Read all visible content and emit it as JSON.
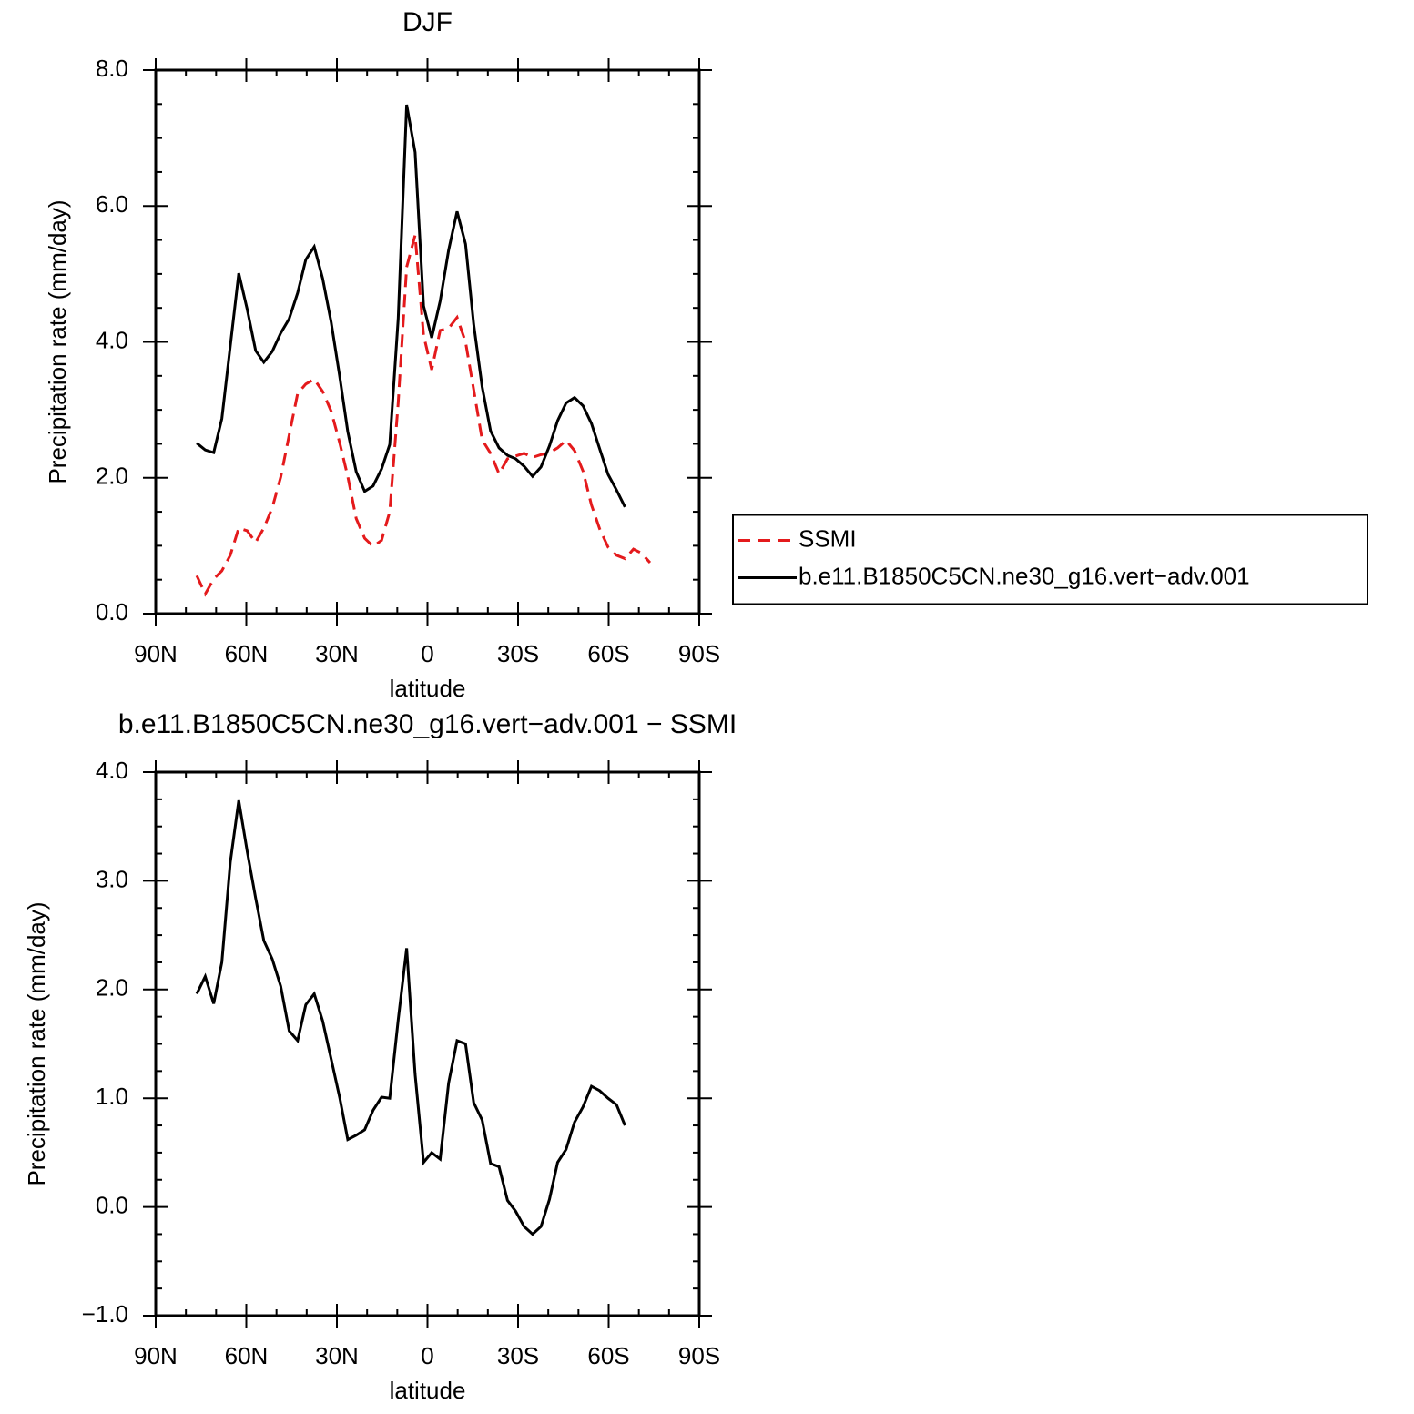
{
  "chart_data": [
    {
      "type": "line",
      "title": "DJF",
      "xlabel": "latitude",
      "ylabel": "Precipitation rate (mm/day)",
      "x": [
        76.4,
        73.6,
        70.8,
        68.1,
        65.3,
        62.5,
        59.7,
        56.9,
        54.2,
        51.4,
        48.6,
        45.8,
        43.0,
        40.3,
        37.5,
        34.7,
        31.9,
        29.1,
        26.4,
        23.6,
        20.8,
        18.0,
        15.2,
        12.5,
        9.7,
        6.9,
        4.1,
        1.3,
        -1.4,
        -4.2,
        -7.0,
        -9.8,
        -12.6,
        -15.3,
        -18.1,
        -20.9,
        -23.7,
        -26.5,
        -29.2,
        -32.0,
        -34.8,
        -37.6,
        -40.4,
        -43.1,
        -45.9,
        -48.7,
        -51.5,
        -54.3,
        -57.0,
        -59.8,
        -62.6,
        -65.4,
        -68.2,
        -70.9,
        -73.7
      ],
      "series": [
        {
          "name": "SSMI",
          "color": "#e41a1c",
          "dashed": true,
          "values": [
            0.56,
            0.29,
            0.51,
            0.63,
            0.86,
            1.26,
            1.22,
            1.05,
            1.26,
            1.56,
            2.01,
            2.63,
            3.24,
            3.38,
            3.45,
            3.27,
            2.98,
            2.52,
            2.02,
            1.4,
            1.11,
            0.99,
            1.08,
            1.5,
            3.1,
            5.1,
            5.57,
            4.1,
            3.59,
            4.17,
            4.2,
            4.36,
            4.0,
            3.3,
            2.56,
            2.36,
            2.06,
            2.28,
            2.32,
            2.36,
            2.3,
            2.34,
            2.37,
            2.44,
            2.55,
            2.4,
            2.1,
            1.6,
            1.25,
            0.98,
            0.86,
            0.81,
            0.95,
            0.89,
            0.75
          ]
        },
        {
          "name": "b.e11.B1850C5CN.ne30_g16.vert−adv.001",
          "color": "#000000",
          "dashed": false,
          "values": [
            2.51,
            2.41,
            2.37,
            2.87,
            3.94,
            5.01,
            4.48,
            3.87,
            3.7,
            3.86,
            4.13,
            4.34,
            4.72,
            5.21,
            5.4,
            4.93,
            4.29,
            3.5,
            2.68,
            2.09,
            1.8,
            1.88,
            2.13,
            2.49,
            4.34,
            7.49,
            6.79,
            4.53,
            4.06,
            4.6,
            5.35,
            5.92,
            5.44,
            4.26,
            3.34,
            2.69,
            2.44,
            2.33,
            2.28,
            2.17,
            2.02,
            2.16,
            2.47,
            2.84,
            3.1,
            3.18,
            3.06,
            2.8,
            2.43,
            2.05,
            1.82,
            1.57,
            null,
            null,
            null
          ]
        }
      ],
      "xlim": [
        90,
        -90
      ],
      "xticks": [
        {
          "value": 90,
          "label": "90N"
        },
        {
          "value": 60,
          "label": "60N"
        },
        {
          "value": 30,
          "label": "30N"
        },
        0,
        {
          "value": -30,
          "label": "30S"
        },
        {
          "value": -60,
          "label": "60S"
        },
        {
          "value": -90,
          "label": "90S"
        }
      ],
      "xminorticks": [
        80,
        70,
        50,
        40,
        20,
        10,
        -10,
        -20,
        -40,
        -50,
        -70,
        -80
      ],
      "ylim": [
        0,
        8
      ],
      "yticks": [
        {
          "value": 0,
          "label": "0.0"
        },
        {
          "value": 2,
          "label": "2.0"
        },
        {
          "value": 4,
          "label": "4.0"
        },
        {
          "value": 6,
          "label": "6.0"
        },
        {
          "value": 8,
          "label": "8.0"
        }
      ],
      "yminorticks": [
        0.5,
        1,
        1.5,
        2.5,
        3,
        3.5,
        4.5,
        5,
        5.5,
        6.5,
        7,
        7.5
      ],
      "legend": "right"
    },
    {
      "type": "line",
      "title": "b.e11.B1850C5CN.ne30_g16.vert−adv.001 − SSMI",
      "xlabel": "latitude",
      "ylabel": "Precipitation rate (mm/day)",
      "x": [
        76.4,
        73.6,
        70.8,
        68.1,
        65.3,
        62.5,
        59.7,
        56.9,
        54.2,
        51.4,
        48.6,
        45.8,
        43.0,
        40.3,
        37.5,
        34.7,
        31.9,
        29.1,
        26.4,
        23.6,
        20.8,
        18.0,
        15.2,
        12.5,
        9.7,
        6.9,
        4.1,
        1.3,
        -1.4,
        -4.2,
        -7.0,
        -9.8,
        -12.6,
        -15.3,
        -18.1,
        -20.9,
        -23.7,
        -26.5,
        -29.2,
        -32.0,
        -34.8,
        -37.6,
        -40.4,
        -43.1,
        -45.9,
        -48.7,
        -51.5,
        -54.3,
        -57.0,
        -59.8,
        -62.6,
        -65.4
      ],
      "color": "#000000",
      "values": [
        1.96,
        2.12,
        1.87,
        2.25,
        3.17,
        3.74,
        3.27,
        2.84,
        2.45,
        2.28,
        2.03,
        1.62,
        1.53,
        1.86,
        1.96,
        1.71,
        1.36,
        1.01,
        0.62,
        0.66,
        0.71,
        0.89,
        1.01,
        1.0,
        1.72,
        2.38,
        1.22,
        0.41,
        0.5,
        0.44,
        1.14,
        1.53,
        1.5,
        0.96,
        0.8,
        0.4,
        0.37,
        0.06,
        -0.04,
        -0.18,
        -0.25,
        -0.18,
        0.07,
        0.41,
        0.53,
        0.78,
        0.92,
        1.11,
        1.07,
        1.0,
        0.94,
        0.75
      ],
      "xlim": [
        90,
        -90
      ],
      "xticks": [
        {
          "value": 90,
          "label": "90N"
        },
        {
          "value": 60,
          "label": "60N"
        },
        {
          "value": 30,
          "label": "30N"
        },
        0,
        {
          "value": -30,
          "label": "30S"
        },
        {
          "value": -60,
          "label": "60S"
        },
        {
          "value": -90,
          "label": "90S"
        }
      ],
      "xminorticks": [
        80,
        70,
        50,
        40,
        20,
        10,
        -10,
        -20,
        -40,
        -50,
        -70,
        -80
      ],
      "ylim": [
        -1,
        4
      ],
      "yticks": [
        {
          "value": -1,
          "label": "−1.0"
        },
        {
          "value": 0,
          "label": "0.0"
        },
        {
          "value": 1,
          "label": "1.0"
        },
        {
          "value": 2,
          "label": "2.0"
        },
        {
          "value": 3,
          "label": "3.0"
        },
        {
          "value": 4,
          "label": "4.0"
        }
      ],
      "yminorticks": [
        -0.75,
        -0.5,
        -0.25,
        0.25,
        0.5,
        0.75,
        1.25,
        1.5,
        1.75,
        2.25,
        2.5,
        2.75,
        3.25,
        3.5,
        3.75
      ]
    }
  ]
}
